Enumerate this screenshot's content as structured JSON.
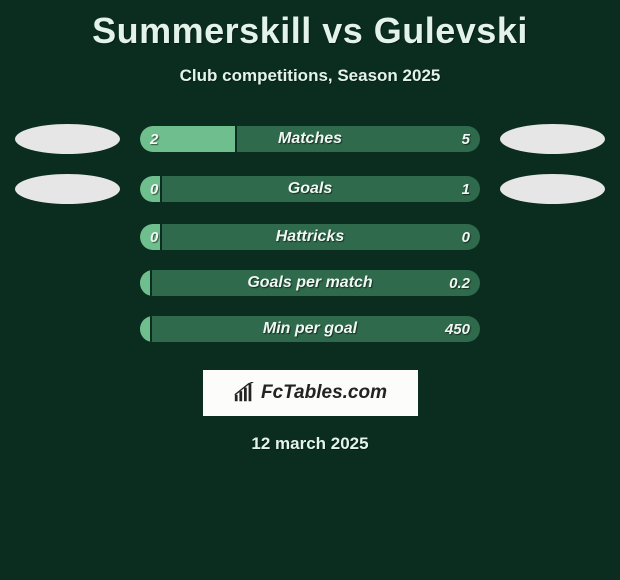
{
  "title": "Summerskill vs Gulevski",
  "subtitle": "Club competitions, Season 2025",
  "date": "12 march 2025",
  "logo_text": "FcTables.com",
  "colors": {
    "background": "#0a2d1f",
    "bar_bg": "#2f6a4c",
    "bar_left_fill": "#6fbf8e",
    "oval": "#e6e6e6",
    "text": "#e4f3ea",
    "logo_box": "#fcfcfa"
  },
  "stats": [
    {
      "label": "Matches",
      "left_val": "2",
      "right_val": "5",
      "left_pct": 28,
      "show_ovals": true,
      "show_left_val": true,
      "show_right_val": true
    },
    {
      "label": "Goals",
      "left_val": "0",
      "right_val": "1",
      "left_pct": 6,
      "show_ovals": true,
      "show_left_val": true,
      "show_right_val": true
    },
    {
      "label": "Hattricks",
      "left_val": "0",
      "right_val": "0",
      "left_pct": 6,
      "show_ovals": false,
      "show_left_val": true,
      "show_right_val": true
    },
    {
      "label": "Goals per match",
      "left_val": "",
      "right_val": "0.2",
      "left_pct": 3,
      "show_ovals": false,
      "show_left_val": false,
      "show_right_val": true
    },
    {
      "label": "Min per goal",
      "left_val": "",
      "right_val": "450",
      "left_pct": 3,
      "show_ovals": false,
      "show_left_val": false,
      "show_right_val": true
    }
  ]
}
